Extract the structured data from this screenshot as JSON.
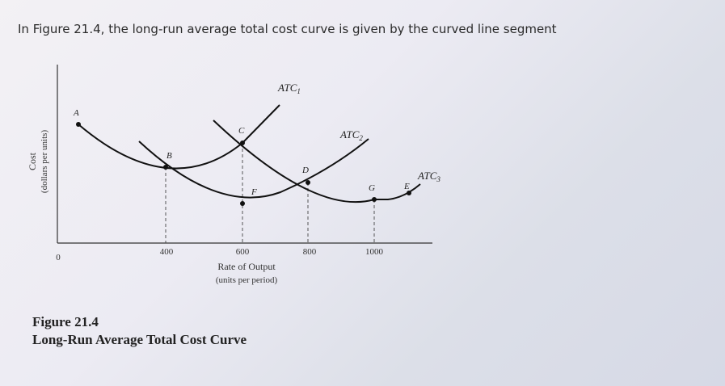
{
  "question": "In Figure 21.4, the long-run average total cost curve is given by the curved line segment",
  "chart_data": {
    "type": "line",
    "ylabel": "Cost",
    "ylabel_units": "(dollars per units)",
    "xlabel": "Rate of Output",
    "xlabel_units": "(units per period)",
    "origin_label": "0",
    "x_ticks": [
      "400",
      "600",
      "800",
      "1000"
    ],
    "series": [
      {
        "name": "ATC1",
        "label_main": "ATC",
        "label_sub": "1"
      },
      {
        "name": "ATC2",
        "label_main": "ATC",
        "label_sub": "2"
      },
      {
        "name": "ATC3",
        "label_main": "ATC",
        "label_sub": "3"
      }
    ],
    "points": [
      {
        "label": "A"
      },
      {
        "label": "B"
      },
      {
        "label": "C"
      },
      {
        "label": "F"
      },
      {
        "label": "D"
      },
      {
        "label": "G"
      },
      {
        "label": "E"
      }
    ]
  },
  "caption": {
    "figure": "Figure 21.4",
    "title": "Long-Run Average Total Cost Curve"
  }
}
